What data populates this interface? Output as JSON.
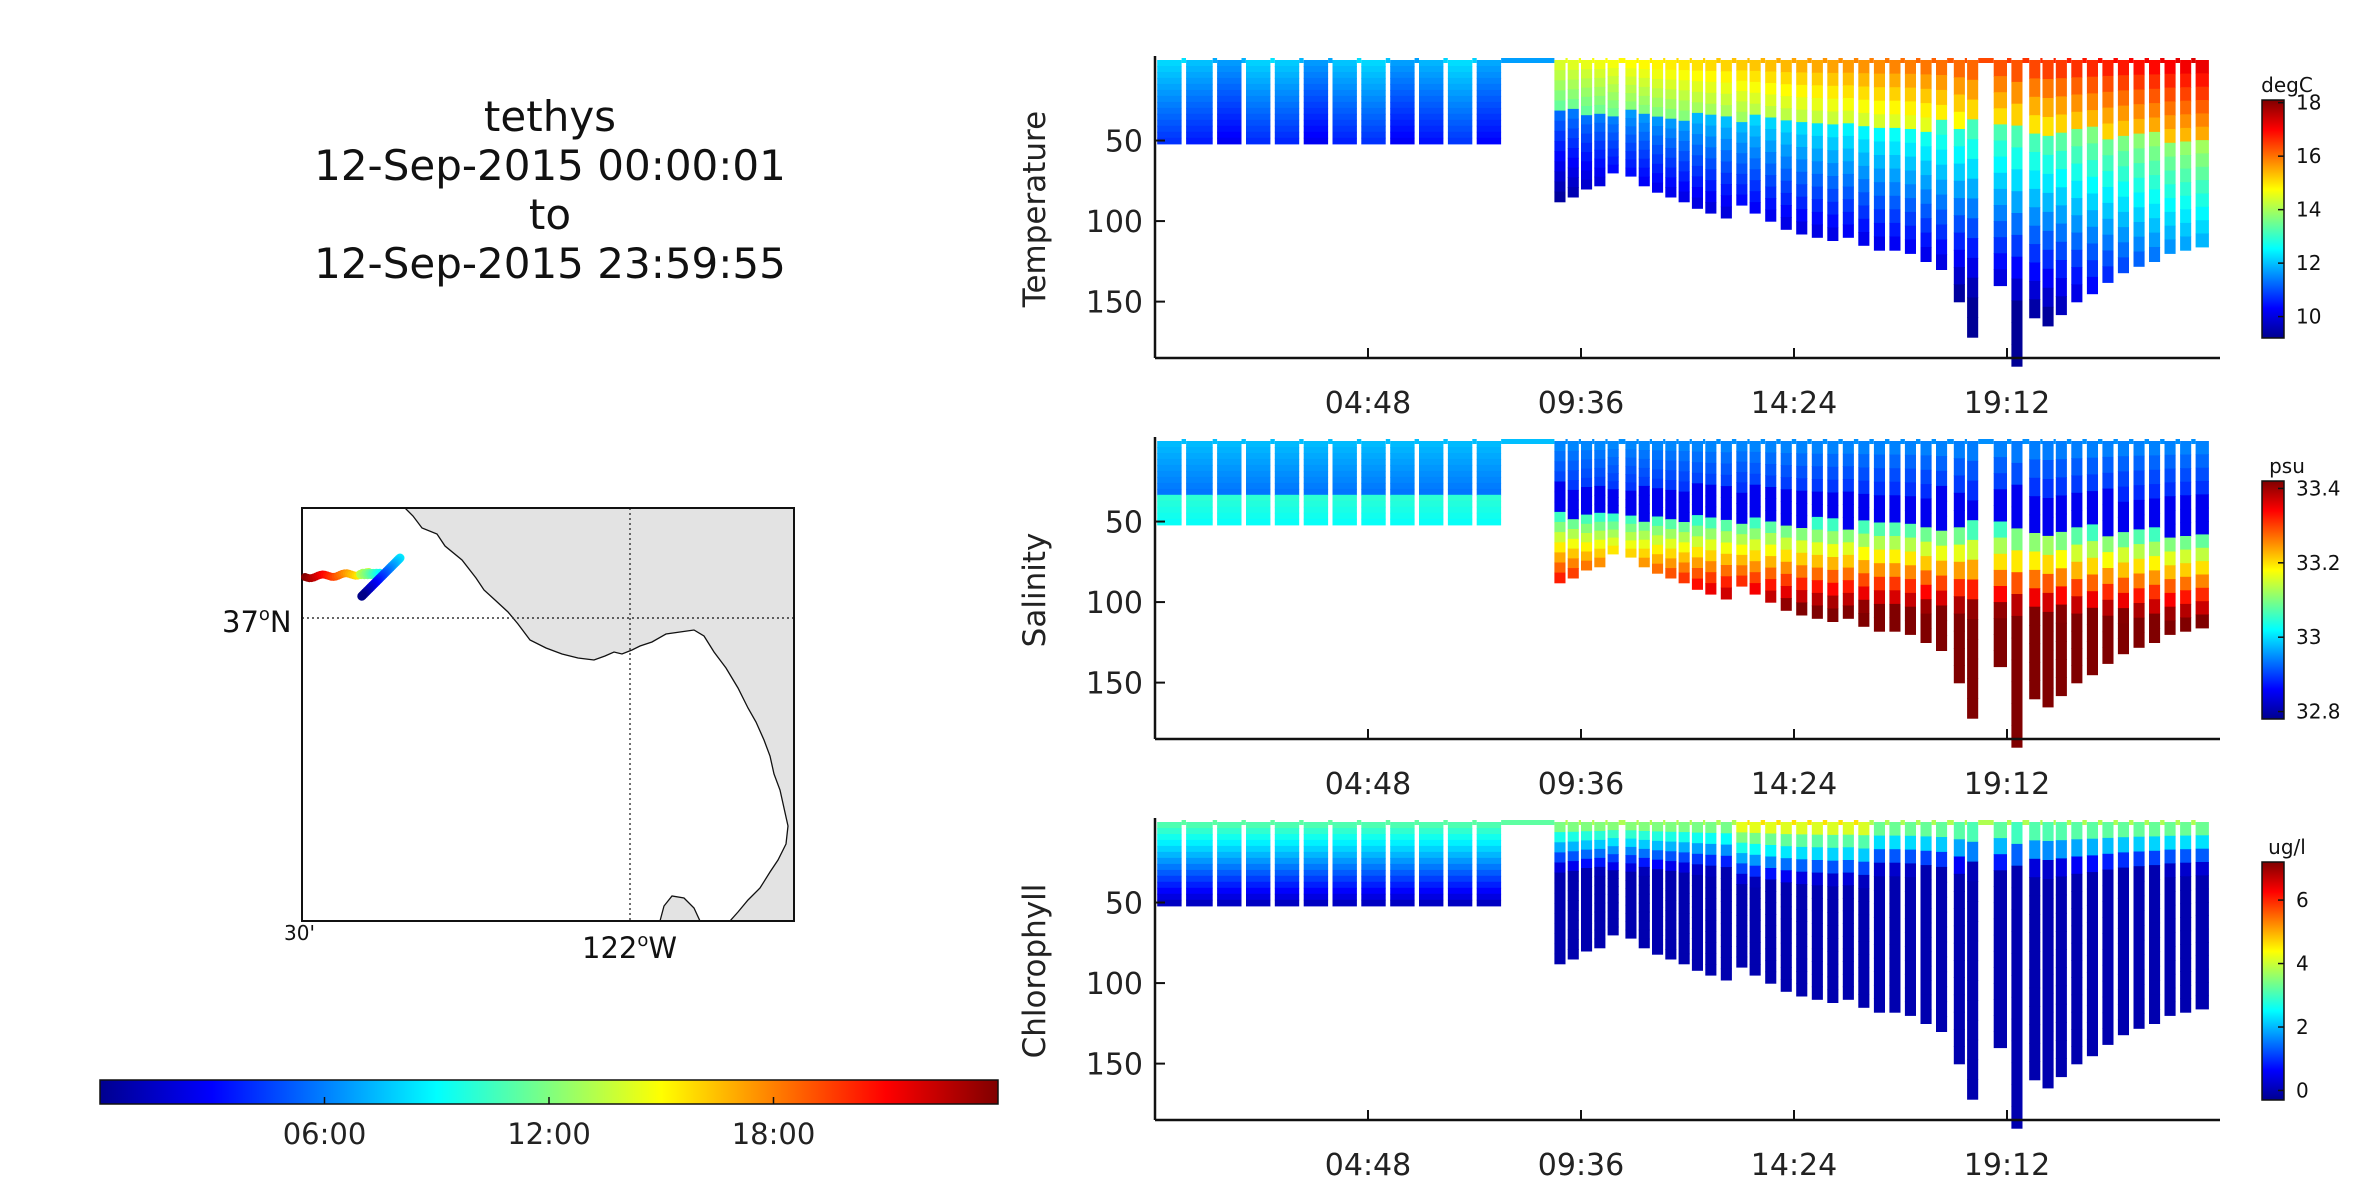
{
  "title": {
    "vehicle": "tethys",
    "start": "12-Sep-2015 00:00:01",
    "to": "to",
    "end": "12-Sep-2015 23:59:55"
  },
  "chart_data": [
    {
      "type": "heatmap",
      "ylabel": "Temperature",
      "colorbar_unit": "degC",
      "colorbar_ticks": [
        "10",
        "12",
        "14",
        "16",
        "18"
      ],
      "clim": [
        9.2,
        18.1
      ],
      "colormap": "jet",
      "ylim": [
        0,
        185
      ],
      "y_reversed": true,
      "y_ticks": [
        "50",
        "100",
        "150"
      ],
      "x_ticks": [
        "04:48",
        "09:36",
        "14:24",
        "19:12"
      ],
      "xlim_hours": [
        0,
        24
      ],
      "mixed_layer_depth_m": 22,
      "surface_value": 14.5,
      "deep_value": 9.4
    },
    {
      "type": "heatmap",
      "ylabel": "Salinity",
      "colorbar_unit": "psu",
      "colorbar_ticks": [
        "32.8",
        "33",
        "33.2",
        "33.4"
      ],
      "clim": [
        32.78,
        33.42
      ],
      "colormap": "jet",
      "ylim": [
        0,
        185
      ],
      "y_reversed": true,
      "y_ticks": [
        "50",
        "100",
        "150"
      ],
      "x_ticks": [
        "04:48",
        "09:36",
        "14:24",
        "19:12"
      ],
      "xlim_hours": [
        0,
        24
      ],
      "surface_value": 32.92,
      "deep_value": 33.42
    },
    {
      "type": "heatmap",
      "ylabel": "Chlorophyll",
      "colorbar_unit": "ug/l",
      "colorbar_ticks": [
        "0",
        "2",
        "4",
        "6"
      ],
      "clim": [
        -0.3,
        7.2
      ],
      "colormap": "jet",
      "ylim": [
        0,
        185
      ],
      "y_reversed": true,
      "y_ticks": [
        "50",
        "100",
        "150"
      ],
      "x_ticks": [
        "04:48",
        "09:36",
        "14:24",
        "19:12"
      ],
      "xlim_hours": [
        0,
        24
      ],
      "surface_value": 3.6,
      "deep_value": 0.1
    }
  ],
  "dive_profiles": {
    "note_units": "start hour, end hour, max depth m",
    "segments": [
      [
        0.05,
        0.6,
        52
      ],
      [
        0.7,
        1.3,
        52
      ],
      [
        1.4,
        1.95,
        52
      ],
      [
        2.05,
        2.6,
        52
      ],
      [
        2.7,
        3.25,
        52
      ],
      [
        3.35,
        3.9,
        52
      ],
      [
        4.0,
        4.55,
        52
      ],
      [
        4.65,
        5.2,
        52
      ],
      [
        5.3,
        5.85,
        52
      ],
      [
        5.95,
        6.5,
        52
      ],
      [
        6.6,
        7.15,
        52
      ],
      [
        7.25,
        7.8,
        52
      ],
      [
        9.0,
        9.25,
        88
      ],
      [
        9.3,
        9.55,
        85
      ],
      [
        9.6,
        9.85,
        80
      ],
      [
        9.9,
        10.15,
        78
      ],
      [
        10.2,
        10.45,
        70
      ],
      [
        10.6,
        10.85,
        72
      ],
      [
        10.9,
        11.15,
        78
      ],
      [
        11.2,
        11.45,
        82
      ],
      [
        11.5,
        11.75,
        85
      ],
      [
        11.8,
        12.05,
        88
      ],
      [
        12.1,
        12.35,
        92
      ],
      [
        12.4,
        12.65,
        95
      ],
      [
        12.75,
        13.0,
        98
      ],
      [
        13.1,
        13.35,
        90
      ],
      [
        13.4,
        13.65,
        95
      ],
      [
        13.75,
        14.0,
        100
      ],
      [
        14.1,
        14.35,
        105
      ],
      [
        14.45,
        14.7,
        108
      ],
      [
        14.8,
        15.05,
        110
      ],
      [
        15.15,
        15.4,
        112
      ],
      [
        15.5,
        15.75,
        110
      ],
      [
        15.85,
        16.1,
        115
      ],
      [
        16.2,
        16.45,
        118
      ],
      [
        16.55,
        16.8,
        118
      ],
      [
        16.9,
        17.15,
        120
      ],
      [
        17.25,
        17.5,
        125
      ],
      [
        17.6,
        17.85,
        130
      ],
      [
        18.0,
        18.25,
        150
      ],
      [
        18.3,
        18.55,
        172
      ],
      [
        18.9,
        19.2,
        140
      ],
      [
        19.3,
        19.55,
        190
      ],
      [
        19.7,
        19.95,
        160
      ],
      [
        20.0,
        20.25,
        165
      ],
      [
        20.3,
        20.55,
        158
      ],
      [
        20.65,
        20.9,
        150
      ],
      [
        21.0,
        21.25,
        145
      ],
      [
        21.35,
        21.6,
        138
      ],
      [
        21.7,
        21.95,
        132
      ],
      [
        22.05,
        22.3,
        128
      ],
      [
        22.4,
        22.65,
        125
      ],
      [
        22.75,
        23.0,
        120
      ],
      [
        23.1,
        23.35,
        118
      ],
      [
        23.45,
        23.75,
        116
      ]
    ]
  },
  "map": {
    "lat_label": "37",
    "lat_suffix": "N",
    "lon_label": "122",
    "lon_suffix": "W",
    "corner_label": "30'",
    "degree_symbol": "o"
  },
  "time_colorbar": {
    "ticks": [
      "06:00",
      "12:00",
      "18:00"
    ],
    "colormap": "jet"
  }
}
